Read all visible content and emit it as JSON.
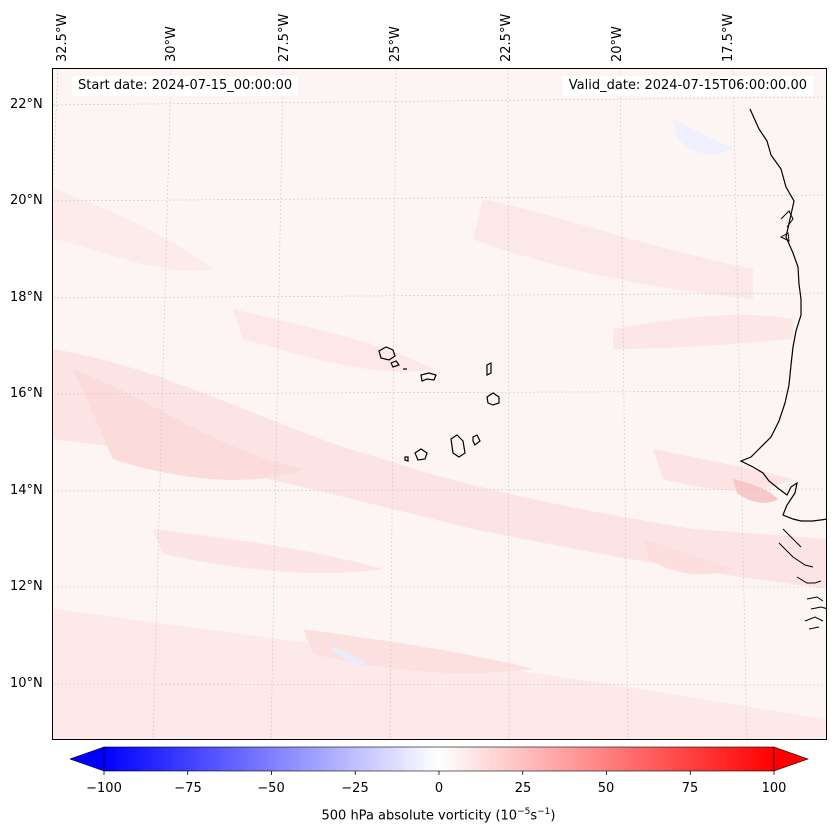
{
  "header": {
    "start_date": "Start date: 2024-07-15_00:00:00",
    "valid_date": "Valid_date: 2024-07-15T06:00:00.00"
  },
  "map": {
    "lon_labels": [
      "32.5°W",
      "30°W",
      "27.5°W",
      "25°W",
      "22.5°W",
      "20°W",
      "17.5°W"
    ],
    "lat_labels": [
      "22°N",
      "20°N",
      "18°N",
      "16°N",
      "14°N",
      "12°N",
      "10°N"
    ],
    "field": "500 hPa absolute vorticity",
    "features": [
      "Cape Verde islands",
      "West African coastline"
    ]
  },
  "colorbar": {
    "ticks": [
      "−100",
      "−75",
      "−50",
      "−25",
      "0",
      "25",
      "50",
      "75",
      "100"
    ],
    "label": "500 hPa absolute vorticity (10",
    "label_exp1": "−5",
    "label_mid": "s",
    "label_exp2": "−1",
    "label_end": ")",
    "range": [
      -100,
      100
    ],
    "colors": {
      "min": "#0000ff",
      "mid": "#ffffff",
      "max": "#ff0000"
    }
  }
}
